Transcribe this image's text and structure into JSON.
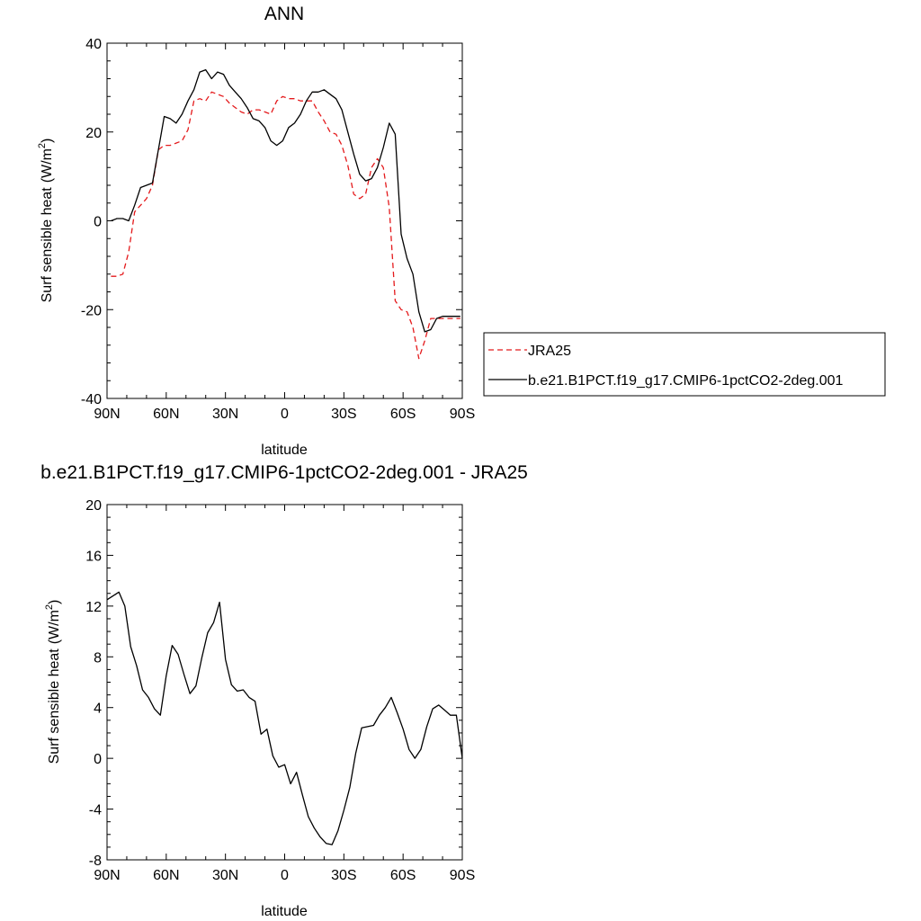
{
  "chart_data": [
    {
      "type": "line",
      "title": "ANN",
      "xlabel": "latitude",
      "ylabel": "Surf sensible heat",
      "ylabel_units": "(W/m",
      "ylabel_exp": "2",
      "ylabel_close": ")",
      "xlim": [
        90,
        -90
      ],
      "ylim": [
        -40,
        40
      ],
      "xticks": [
        {
          "value": 90,
          "label": "90N"
        },
        {
          "value": 60,
          "label": "60N"
        },
        {
          "value": 30,
          "label": "30N"
        },
        {
          "value": 0,
          "label": "0"
        },
        {
          "value": -30,
          "label": "30S"
        },
        {
          "value": -60,
          "label": "60S"
        },
        {
          "value": -90,
          "label": "90S"
        }
      ],
      "yticks": [
        {
          "value": 40,
          "label": "40"
        },
        {
          "value": 20,
          "label": "20"
        },
        {
          "value": 0,
          "label": "0"
        },
        {
          "value": -20,
          "label": "-20"
        },
        {
          "value": -40,
          "label": "-40"
        }
      ],
      "legend_position": "right",
      "series": [
        {
          "name": "JRA25",
          "color": "#e41a1c",
          "dashed": true,
          "x": [
            88,
            85,
            82,
            79,
            76,
            73,
            70,
            67,
            64,
            61,
            58,
            55,
            52,
            49,
            46,
            43,
            40,
            37,
            34,
            31,
            28,
            25,
            22,
            19,
            16,
            13,
            10,
            7,
            4,
            1,
            -2,
            -5,
            -8,
            -11,
            -14,
            -17,
            -20,
            -23,
            -26,
            -29,
            -32,
            -35,
            -38,
            -41,
            -44,
            -47,
            -50,
            -53,
            -56,
            -59,
            -62,
            -65,
            -68,
            -71,
            -74,
            -77,
            -80,
            -83,
            -86,
            -89
          ],
          "y": [
            -12.5,
            -12.5,
            -12,
            -7,
            2,
            3.5,
            5,
            8,
            16,
            17,
            17,
            17.5,
            18,
            20.5,
            27,
            27.5,
            27,
            29,
            28.5,
            28,
            26.5,
            25.5,
            24.5,
            24,
            25,
            25,
            24.5,
            24,
            27,
            28,
            27.5,
            27.5,
            27,
            27,
            27,
            24.5,
            22.5,
            20,
            19.5,
            17,
            12.5,
            6,
            5,
            6,
            12,
            14,
            12,
            3,
            -18,
            -20,
            -20.5,
            -24,
            -31,
            -27,
            -22,
            -22,
            -22,
            -22,
            -22,
            -22
          ]
        },
        {
          "name": "b.e21.B1PCT.f19_g17.CMIP6-1pctCO2-2deg.001",
          "color": "#000000",
          "dashed": false,
          "x": [
            88,
            85,
            82,
            79,
            76,
            73,
            70,
            67,
            64,
            61,
            58,
            55,
            52,
            49,
            46,
            43,
            40,
            37,
            34,
            31,
            28,
            25,
            22,
            19,
            16,
            13,
            10,
            7,
            4,
            1,
            -2,
            -5,
            -8,
            -11,
            -14,
            -17,
            -20,
            -23,
            -26,
            -29,
            -32,
            -35,
            -38,
            -41,
            -44,
            -47,
            -50,
            -53,
            -56,
            -59,
            -62,
            -65,
            -68,
            -71,
            -74,
            -77,
            -80,
            -83,
            -86,
            -89
          ],
          "y": [
            0,
            0.5,
            0.5,
            0,
            3.5,
            7.5,
            8,
            8.5,
            16,
            23.5,
            23,
            22,
            24,
            27,
            29.5,
            33.5,
            34,
            32,
            33.5,
            33,
            30.5,
            29,
            27.5,
            25.5,
            23,
            22.5,
            21,
            18,
            17,
            18,
            21,
            22,
            24,
            27,
            29,
            29,
            29.5,
            28.5,
            27.5,
            25,
            20,
            15,
            10.5,
            9,
            9.5,
            12,
            16.5,
            22,
            19.5,
            -3,
            -8.5,
            -12,
            -20.5,
            -25,
            -24.5,
            -22,
            -21.5,
            -21.5,
            -21.5,
            -21.5
          ]
        }
      ]
    },
    {
      "type": "line",
      "title": "b.e21.B1PCT.f19_g17.CMIP6-1pctCO2-2deg.001 - JRA25",
      "xlabel": "latitude",
      "ylabel": "Surf sensible heat",
      "ylabel_units": "(W/m",
      "ylabel_exp": "2",
      "ylabel_close": ")",
      "xlim": [
        90,
        -90
      ],
      "ylim": [
        -8,
        20
      ],
      "xticks": [
        {
          "value": 90,
          "label": "90N"
        },
        {
          "value": 60,
          "label": "60N"
        },
        {
          "value": 30,
          "label": "30N"
        },
        {
          "value": 0,
          "label": "0"
        },
        {
          "value": -30,
          "label": "30S"
        },
        {
          "value": -60,
          "label": "60S"
        },
        {
          "value": -90,
          "label": "90S"
        }
      ],
      "yticks": [
        {
          "value": 20,
          "label": "20"
        },
        {
          "value": 16,
          "label": "16"
        },
        {
          "value": 12,
          "label": "12"
        },
        {
          "value": 8,
          "label": "8"
        },
        {
          "value": 4,
          "label": "4"
        },
        {
          "value": 0,
          "label": "0"
        },
        {
          "value": -4,
          "label": "-4"
        },
        {
          "value": -8,
          "label": "-8"
        }
      ],
      "series": [
        {
          "color": "#000000",
          "dashed": false,
          "x": [
            90,
            87,
            84,
            81,
            78,
            75,
            72,
            69,
            66,
            63,
            60,
            57,
            54,
            51,
            48,
            45,
            42,
            39,
            36,
            33,
            30,
            27,
            24,
            21,
            18,
            15,
            12,
            9,
            6,
            3,
            0,
            -3,
            -6,
            -9,
            -12,
            -15,
            -18,
            -21,
            -24,
            -27,
            -30,
            -33,
            -36,
            -39,
            -42,
            -45,
            -48,
            -51,
            -54,
            -57,
            -60,
            -63,
            -66,
            -69,
            -72,
            -75,
            -78,
            -81,
            -84,
            -87,
            -90
          ],
          "y": [
            12.5,
            12.8,
            13.1,
            12.0,
            8.8,
            7.3,
            5.4,
            4.8,
            3.9,
            3.4,
            6.5,
            8.9,
            8.2,
            6.6,
            5.1,
            5.7,
            7.9,
            9.9,
            10.7,
            12.3,
            7.8,
            5.8,
            5.3,
            5.4,
            4.8,
            4.5,
            1.9,
            2.3,
            0.2,
            -0.7,
            -0.5,
            -2.0,
            -1.1,
            -2.9,
            -4.6,
            -5.5,
            -6.2,
            -6.7,
            -6.8,
            -5.7,
            -4.1,
            -2.3,
            0.4,
            2.4,
            2.5,
            2.6,
            3.4,
            4.0,
            4.8,
            3.6,
            2.3,
            0.7,
            0.0,
            0.7,
            2.5,
            3.9,
            4.2,
            3.8,
            3.4,
            3.4,
            0.0
          ]
        }
      ]
    }
  ]
}
